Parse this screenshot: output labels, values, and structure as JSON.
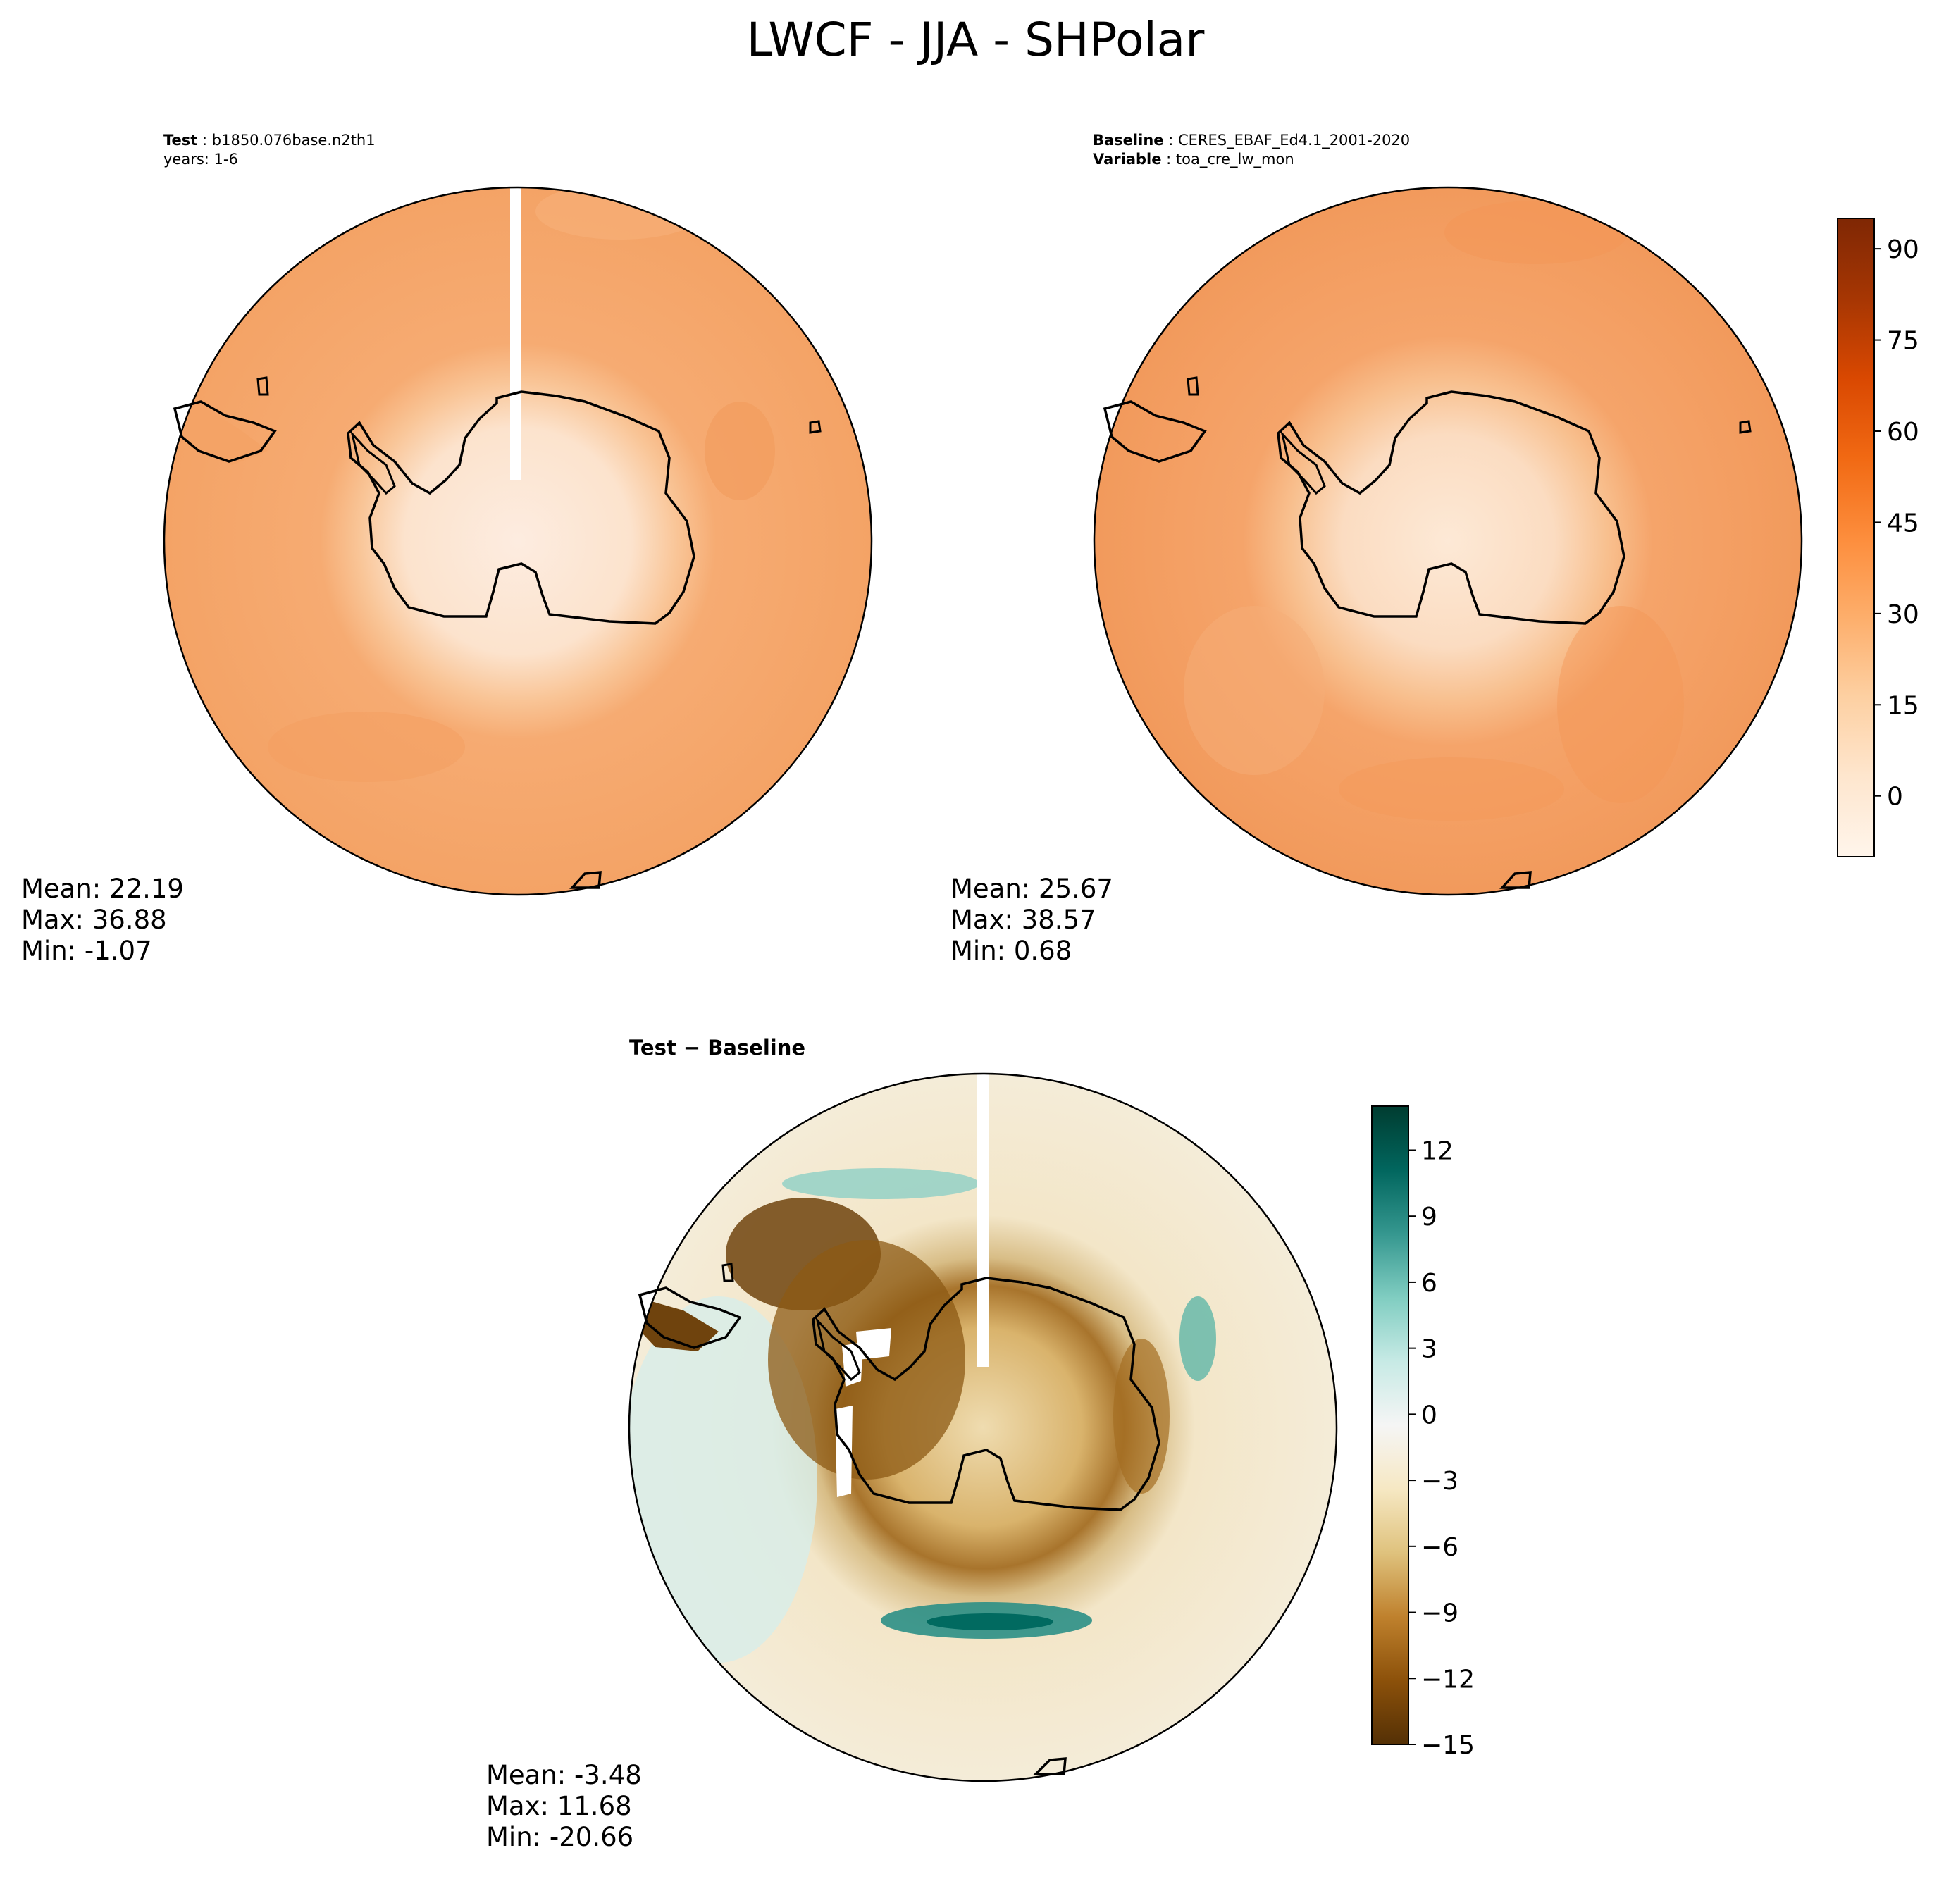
{
  "figure": {
    "title": "LWCF - JJA - SHPolar"
  },
  "panels": {
    "test": {
      "header": {
        "label": "Test",
        "value": "b1850.076base.n2th1",
        "line2": "years: 1-6"
      },
      "stats": {
        "mean": "Mean: 22.19",
        "max": "Max: 36.88",
        "min": "Min: -1.07"
      }
    },
    "baseline": {
      "header": {
        "label": "Baseline",
        "value": "CERES_EBAF_Ed4.1_2001-2020",
        "label2": "Variable",
        "value2": "toa_cre_lw_mon"
      },
      "stats": {
        "mean": "Mean: 25.67",
        "max": "Max: 38.57",
        "min": "Min:  0.68"
      }
    },
    "diff": {
      "title": "Test − Baseline",
      "stats": {
        "mean": "Mean: -3.48",
        "max": "Max: 11.68",
        "min": "Min: -20.66"
      }
    }
  },
  "colors": {
    "test_field": "#f6ab72",
    "baseline_field": "#f5a46a",
    "ice_low": "#fde9d6",
    "ice_mid": "#fbd2ad",
    "diff_neutral": "#f7efdd",
    "diff_brown": "#8c5a14",
    "diff_green": "#6cc2b2"
  },
  "chart_data": [
    {
      "type": "heatmap",
      "name": "test",
      "units_min": -1.07,
      "units_max": 36.88,
      "mean": 22.19,
      "colormap": "Oranges"
    },
    {
      "type": "heatmap",
      "name": "baseline",
      "units_min": 0.68,
      "units_max": 38.57,
      "mean": 25.67,
      "colormap": "Oranges"
    },
    {
      "type": "heatmap",
      "name": "diff",
      "units_min": -20.66,
      "units_max": 11.68,
      "mean": -3.48,
      "colormap": "BrBG"
    },
    {
      "type": "colorbar",
      "name": "abs_colorbar",
      "ticks": [
        0,
        15,
        30,
        45,
        60,
        75,
        90
      ],
      "tick_labels": [
        "0",
        "15",
        "30",
        "45",
        "60",
        "75",
        "90"
      ],
      "range": [
        -10,
        95
      ],
      "stops": [
        "#fff5eb",
        "#fee6ce",
        "#fdd0a2",
        "#fdae6b",
        "#fd8d3c",
        "#f16913",
        "#d94801",
        "#a63603",
        "#7f2704"
      ]
    },
    {
      "type": "colorbar",
      "name": "diff_colorbar",
      "ticks": [
        -15,
        -12,
        -9,
        -6,
        -3,
        0,
        3,
        6,
        9,
        12
      ],
      "tick_labels": [
        "−15",
        "−12",
        "−9",
        "−6",
        "−3",
        "0",
        "3",
        "6",
        "9",
        "12"
      ],
      "range": [
        -15,
        14
      ],
      "stops": [
        "#543005",
        "#8c510a",
        "#bf812d",
        "#dfc27d",
        "#f6e8c3",
        "#f5f5f5",
        "#c7eae5",
        "#80cdc1",
        "#35978f",
        "#01665e",
        "#003c30"
      ]
    }
  ]
}
